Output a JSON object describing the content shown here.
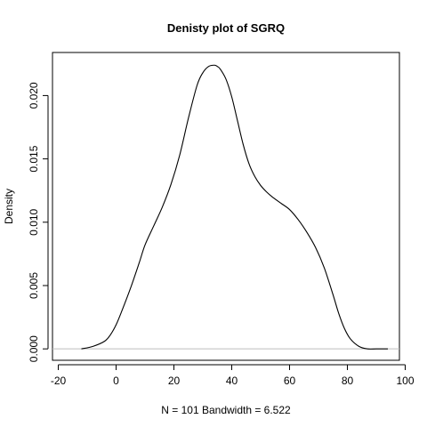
{
  "chart_data": {
    "type": "line",
    "title": "Denisty plot of  SGRQ",
    "xlabel": "N = 101   Bandwidth = 6.522",
    "ylabel": "Density",
    "xlim": [
      -22,
      98
    ],
    "ylim": [
      -0.0009,
      0.0234
    ],
    "xticks": [
      -20,
      0,
      20,
      40,
      60,
      80,
      100
    ],
    "xtick_labels": [
      "-20",
      "0",
      "20",
      "40",
      "60",
      "80",
      "100"
    ],
    "yticks": [
      0,
      0.005,
      0.01,
      0.015,
      0.02
    ],
    "ytick_labels": [
      "0.000",
      "0.005",
      "0.010",
      "0.015",
      "0.020"
    ],
    "grid": false,
    "baseline_y": 0,
    "series": [
      {
        "x": [
          -12,
          -8,
          -4,
          -2,
          0,
          2,
          5,
          8,
          10,
          13,
          16,
          19,
          22,
          25,
          28,
          30,
          32,
          34,
          35,
          36,
          38,
          40,
          42,
          44,
          46,
          48,
          50,
          52,
          54,
          57,
          60,
          63,
          66,
          69,
          72,
          75,
          77,
          79,
          81,
          84,
          87,
          90,
          94
        ],
        "y": [
          0.0,
          0.0002,
          0.0006,
          0.0011,
          0.0019,
          0.003,
          0.0048,
          0.0068,
          0.0082,
          0.0097,
          0.0112,
          0.013,
          0.0153,
          0.0182,
          0.0208,
          0.0218,
          0.0223,
          0.0224,
          0.0223,
          0.0221,
          0.0213,
          0.0199,
          0.018,
          0.0161,
          0.0146,
          0.0136,
          0.0129,
          0.0124,
          0.012,
          0.0115,
          0.011,
          0.0102,
          0.0092,
          0.008,
          0.0064,
          0.0043,
          0.0028,
          0.0016,
          0.0008,
          0.0002,
          0.0,
          0.0,
          0.0
        ],
        "color": "#000000"
      }
    ]
  }
}
